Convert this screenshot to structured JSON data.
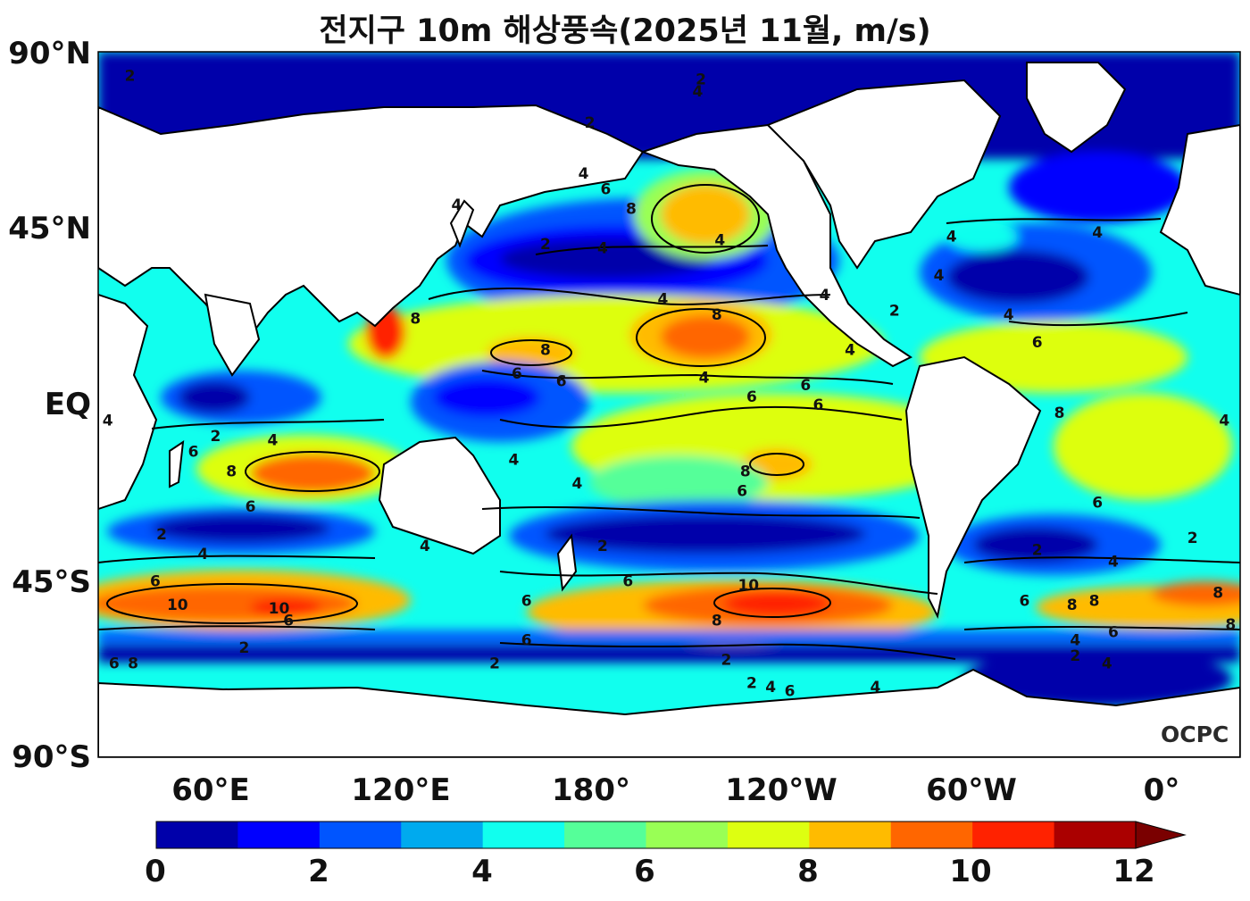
{
  "title": "전지구 10m 해상풍속(2025년 11월, m/s)",
  "logo": "OCPC",
  "y_ticks": [
    "90°N",
    "45°N",
    "EQ",
    "45°S",
    "90°S"
  ],
  "x_ticks": [
    "60°E",
    "120°E",
    "180°",
    "120°W",
    "60°W",
    "0°"
  ],
  "colorbar": {
    "ticks": [
      "0",
      "2",
      "4",
      "6",
      "8",
      "10",
      "12"
    ],
    "min": 0,
    "max": 12,
    "step": 1,
    "extend": "max",
    "colors": [
      "#0000aa",
      "#0000ff",
      "#0055ff",
      "#00aaee",
      "#11ffee",
      "#55ff99",
      "#99ff55",
      "#ddff11",
      "#ffbb00",
      "#ff6600",
      "#ff2200",
      "#aa0000"
    ],
    "over_color": "#7a0000"
  },
  "contour_labels": [
    {
      "v": "2",
      "lon": 35,
      "lat": 84
    },
    {
      "v": "2",
      "lon": 215,
      "lat": 83
    },
    {
      "v": "4",
      "lon": 214,
      "lat": 80
    },
    {
      "v": "2",
      "lon": 180,
      "lat": 72
    },
    {
      "v": "6",
      "lon": 185,
      "lat": 55
    },
    {
      "v": "8",
      "lon": 193,
      "lat": 50
    },
    {
      "v": "4",
      "lon": 178,
      "lat": 59
    },
    {
      "v": "4",
      "lon": 138,
      "lat": 51
    },
    {
      "v": "2",
      "lon": 166,
      "lat": 41
    },
    {
      "v": "4",
      "lon": 184,
      "lat": 40
    },
    {
      "v": "4",
      "lon": 221,
      "lat": 42
    },
    {
      "v": "4",
      "lon": 203,
      "lat": 27
    },
    {
      "v": "8",
      "lon": 220,
      "lat": 23
    },
    {
      "v": "8",
      "lon": 125,
      "lat": 22
    },
    {
      "v": "8",
      "lon": 166,
      "lat": 14
    },
    {
      "v": "6",
      "lon": 157,
      "lat": 8
    },
    {
      "v": "6",
      "lon": 171,
      "lat": 6
    },
    {
      "v": "4",
      "lon": 216,
      "lat": 7
    },
    {
      "v": "6",
      "lon": 231,
      "lat": 2
    },
    {
      "v": "6",
      "lon": 252,
      "lat": 0
    },
    {
      "v": "6",
      "lon": 248,
      "lat": 5
    },
    {
      "v": "4",
      "lon": 262,
      "lat": 14
    },
    {
      "v": "4",
      "lon": 254,
      "lat": 28
    },
    {
      "v": "4",
      "lon": 290,
      "lat": 33
    },
    {
      "v": "4",
      "lon": 294,
      "lat": 43
    },
    {
      "v": "2",
      "lon": 276,
      "lat": 24
    },
    {
      "v": "4",
      "lon": 312,
      "lat": 23
    },
    {
      "v": "6",
      "lon": 321,
      "lat": 16
    },
    {
      "v": "4",
      "lon": 340,
      "lat": 44
    },
    {
      "v": "8",
      "lon": 328,
      "lat": -2
    },
    {
      "v": "4",
      "lon": 20,
      "lat": -4
    },
    {
      "v": "4",
      "lon": 28,
      "lat": -4
    },
    {
      "v": "2",
      "lon": 62,
      "lat": -8
    },
    {
      "v": "6",
      "lon": 55,
      "lat": -12
    },
    {
      "v": "8",
      "lon": 67,
      "lat": -17
    },
    {
      "v": "6",
      "lon": 73,
      "lat": -26
    },
    {
      "v": "4",
      "lon": 80,
      "lat": -9
    },
    {
      "v": "4",
      "lon": 156,
      "lat": -14
    },
    {
      "v": "4",
      "lon": 176,
      "lat": -20
    },
    {
      "v": "8",
      "lon": 229,
      "lat": -17
    },
    {
      "v": "6",
      "lon": 228,
      "lat": -22
    },
    {
      "v": "2",
      "lon": 10,
      "lat": -34
    },
    {
      "v": "2",
      "lon": 45,
      "lat": -33
    },
    {
      "v": "4",
      "lon": 58,
      "lat": -38
    },
    {
      "v": "4",
      "lon": 128,
      "lat": -36
    },
    {
      "v": "2",
      "lon": 184,
      "lat": -36
    },
    {
      "v": "6",
      "lon": 192,
      "lat": -45
    },
    {
      "v": "10",
      "lon": 230,
      "lat": -46
    },
    {
      "v": "6",
      "lon": 160,
      "lat": -50
    },
    {
      "v": "8",
      "lon": 220,
      "lat": -55
    },
    {
      "v": "6",
      "lon": 160,
      "lat": -60
    },
    {
      "v": "8",
      "lon": 18,
      "lat": -48
    },
    {
      "v": "6",
      "lon": 43,
      "lat": -45
    },
    {
      "v": "10",
      "lon": 50,
      "lat": -51
    },
    {
      "v": "10",
      "lon": 82,
      "lat": -52
    },
    {
      "v": "8",
      "lon": 22,
      "lat": -56
    },
    {
      "v": "6",
      "lon": 85,
      "lat": -55
    },
    {
      "v": "2",
      "lon": 71,
      "lat": -62
    },
    {
      "v": "6",
      "lon": 30,
      "lat": -66
    },
    {
      "v": "8",
      "lon": 36,
      "lat": -66
    },
    {
      "v": "2",
      "lon": 150,
      "lat": -66
    },
    {
      "v": "2",
      "lon": 223,
      "lat": -65
    },
    {
      "v": "2",
      "lon": 231,
      "lat": -71
    },
    {
      "v": "4",
      "lon": 237,
      "lat": -72
    },
    {
      "v": "6",
      "lon": 243,
      "lat": -73
    },
    {
      "v": "4",
      "lon": 270,
      "lat": -72
    },
    {
      "v": "6",
      "lon": 317,
      "lat": -50
    },
    {
      "v": "8",
      "lon": 332,
      "lat": -51
    },
    {
      "v": "8",
      "lon": 339,
      "lat": -50
    },
    {
      "v": "6",
      "lon": 345,
      "lat": -58
    },
    {
      "v": "4",
      "lon": 333,
      "lat": -60
    },
    {
      "v": "2",
      "lon": 321,
      "lat": -37
    },
    {
      "v": "4",
      "lon": 345,
      "lat": -40
    },
    {
      "v": "6",
      "lon": 340,
      "lat": -25
    },
    {
      "v": "2",
      "lon": 333,
      "lat": -64
    },
    {
      "v": "4",
      "lon": 343,
      "lat": -66
    }
  ]
}
